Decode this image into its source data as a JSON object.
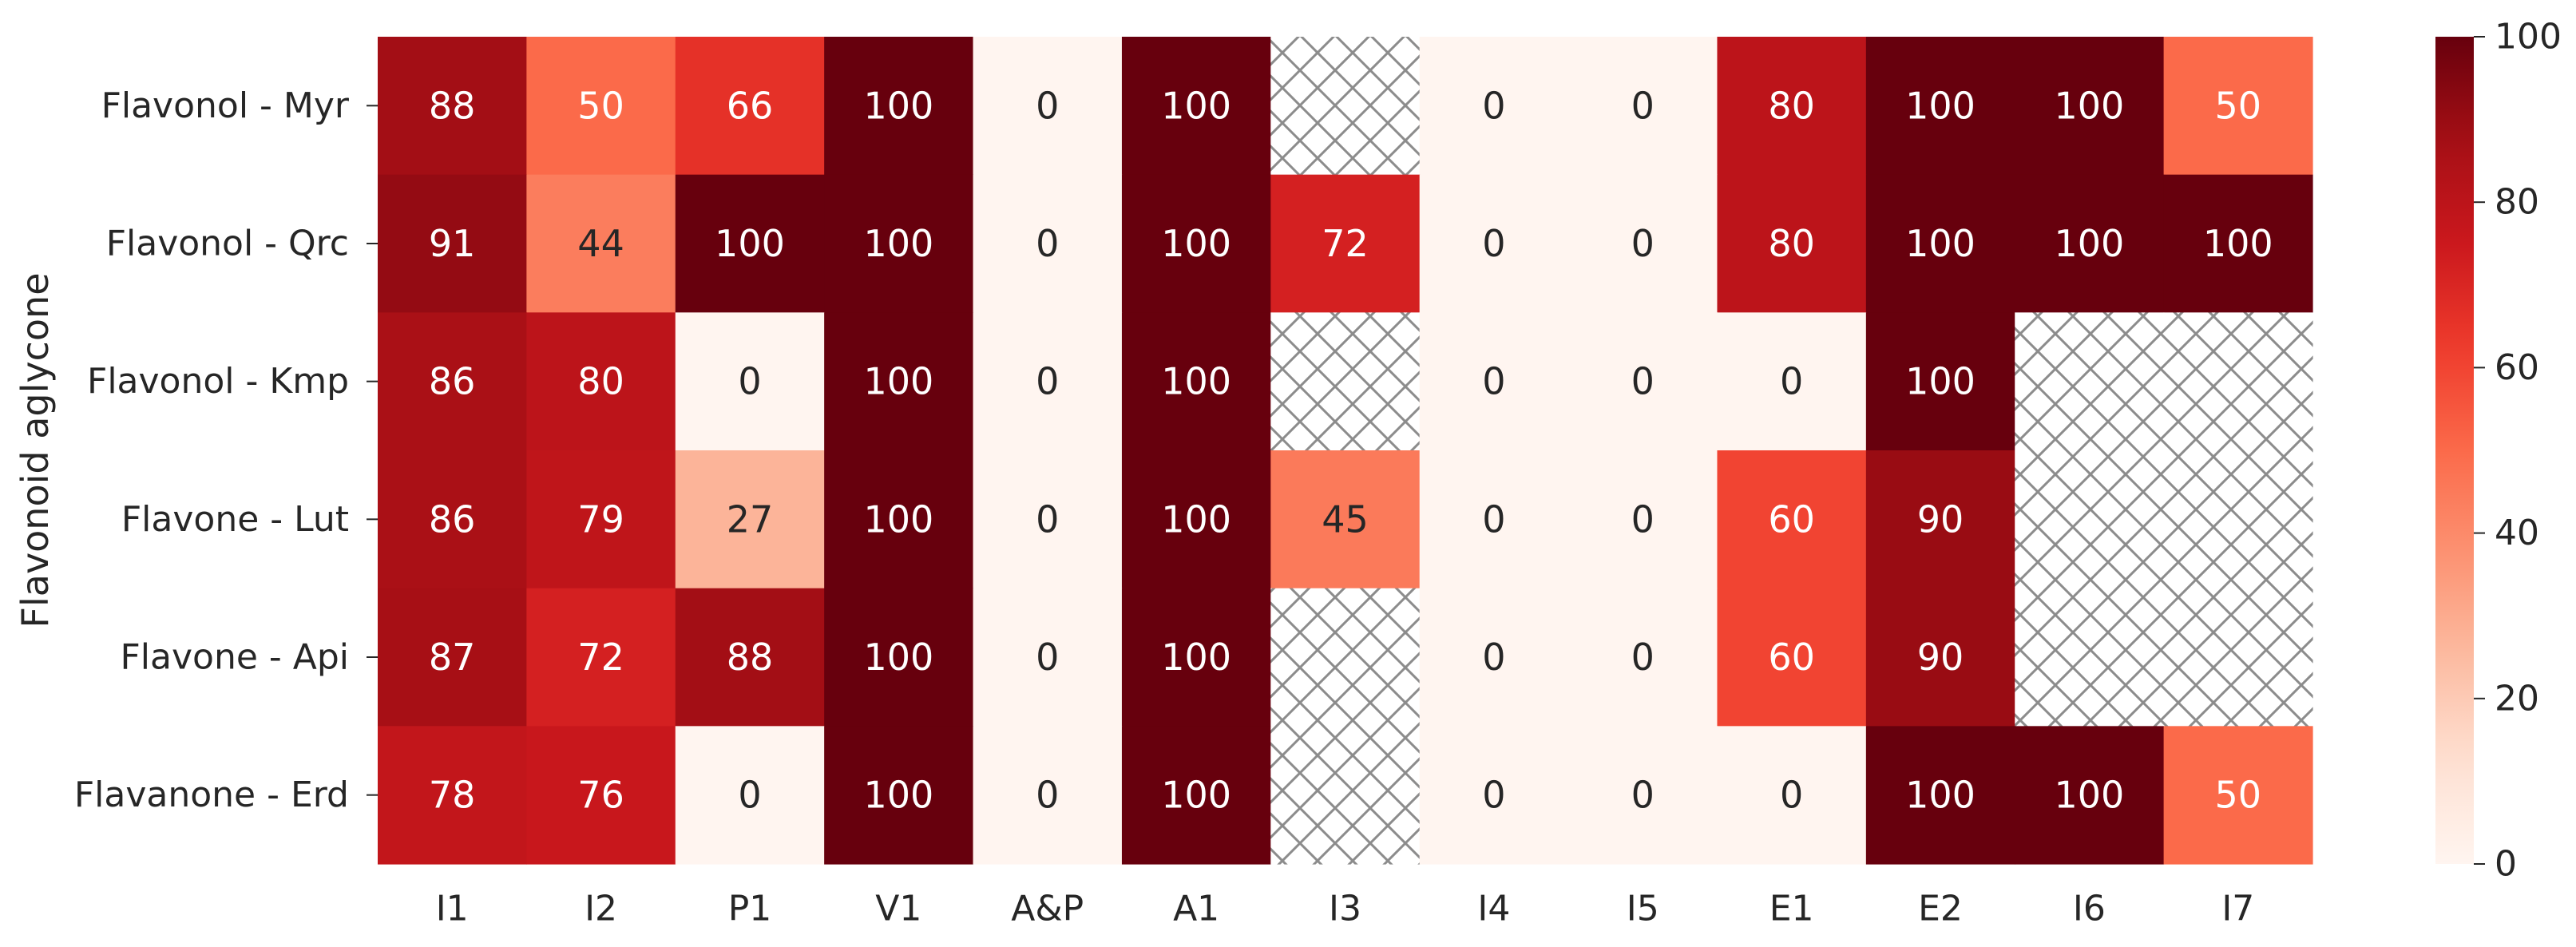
{
  "chart_data": {
    "type": "heatmap",
    "x_categories": [
      "I1",
      "I2",
      "P1",
      "V1",
      "A&P",
      "A1",
      "I3",
      "I4",
      "I5",
      "E1",
      "E2",
      "I6",
      "I7"
    ],
    "y_categories": [
      "Flavonol - Myr",
      "Flavonol - Qrc",
      "Flavonol - Kmp",
      "Flavone - Lut",
      "Flavone - Api",
      "Flavanone - Erd"
    ],
    "ylabel": "Flavonoid aglycone",
    "xlabel": "",
    "values": [
      [
        88,
        50,
        66,
        100,
        0,
        100,
        null,
        0,
        0,
        80,
        100,
        100,
        50
      ],
      [
        91,
        44,
        100,
        100,
        0,
        100,
        72,
        0,
        0,
        80,
        100,
        100,
        100
      ],
      [
        86,
        80,
        0,
        100,
        0,
        100,
        null,
        0,
        0,
        0,
        100,
        null,
        null
      ],
      [
        86,
        79,
        27,
        100,
        0,
        100,
        45,
        0,
        0,
        60,
        90,
        null,
        null
      ],
      [
        87,
        72,
        88,
        100,
        0,
        100,
        null,
        0,
        0,
        60,
        90,
        null,
        null
      ],
      [
        78,
        76,
        0,
        100,
        0,
        100,
        null,
        0,
        0,
        0,
        100,
        100,
        50
      ]
    ],
    "missing_display": "hatched",
    "colormap": "Reds",
    "vmin": 0,
    "vmax": 100,
    "colorbar_ticks": [
      0,
      20,
      40,
      60,
      80,
      100
    ],
    "grid": false,
    "annotated": true
  }
}
